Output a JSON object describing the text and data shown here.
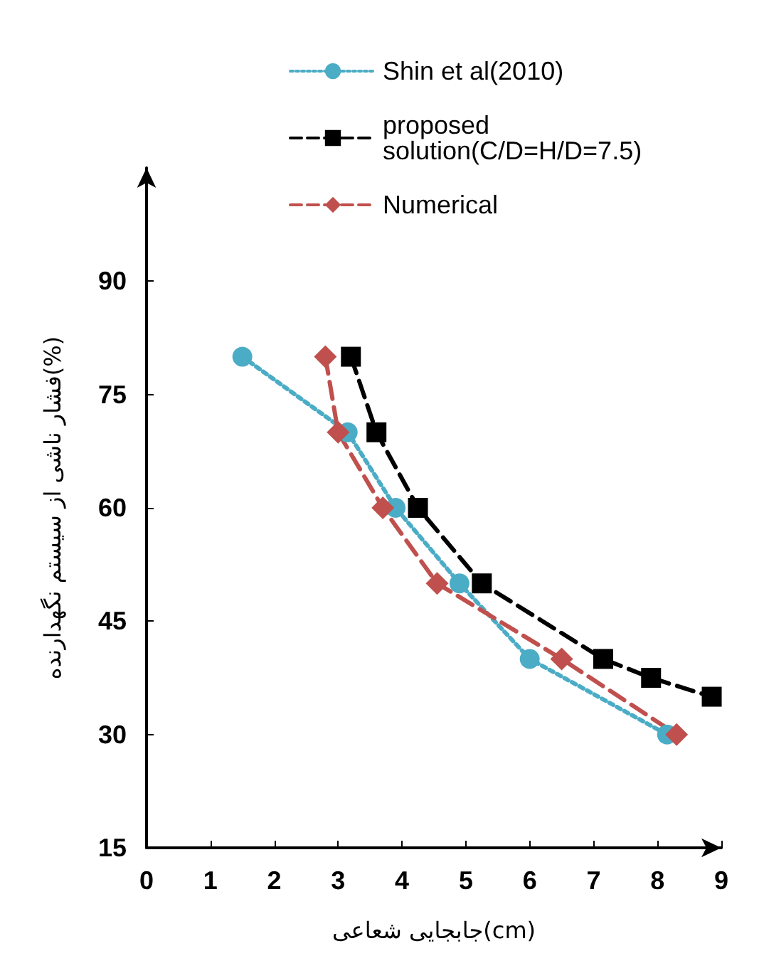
{
  "chart_data": {
    "type": "line",
    "xlabel": "جابجایی شعاعی(cm)",
    "ylabel": "فشار ناشی از سیستم نگهدارنده(%)",
    "xlim": [
      0,
      9
    ],
    "xticks": [
      0,
      1,
      2,
      3,
      4,
      5,
      6,
      7,
      8,
      9
    ],
    "ylim": [
      15,
      105
    ],
    "yticks": [
      15,
      30,
      45,
      60,
      75,
      90
    ],
    "grid": false,
    "legend": "top",
    "series": [
      {
        "name": "Shin et al(2010)",
        "color": "#4bacc6",
        "marker": "circle",
        "line_style": "dotted",
        "x": [
          1.5,
          3.15,
          3.9,
          4.9,
          6.0,
          8.15
        ],
        "values": [
          80,
          70,
          60,
          50,
          40,
          30
        ]
      },
      {
        "name": "proposed\nsolution(C/D=H/D=7.5)",
        "color": "#000000",
        "marker": "square",
        "line_style": "dashed",
        "x": [
          3.2,
          3.6,
          4.25,
          5.25,
          7.15,
          7.9,
          8.85
        ],
        "values": [
          80,
          70,
          60,
          50,
          40,
          37.5,
          35
        ]
      },
      {
        "name": "Numerical",
        "color": "#c0504d",
        "marker": "diamond",
        "line_style": "dashed",
        "x": [
          2.8,
          3.0,
          3.7,
          4.55,
          6.5,
          8.3
        ],
        "values": [
          80,
          70,
          60,
          50,
          40,
          30
        ]
      }
    ]
  }
}
